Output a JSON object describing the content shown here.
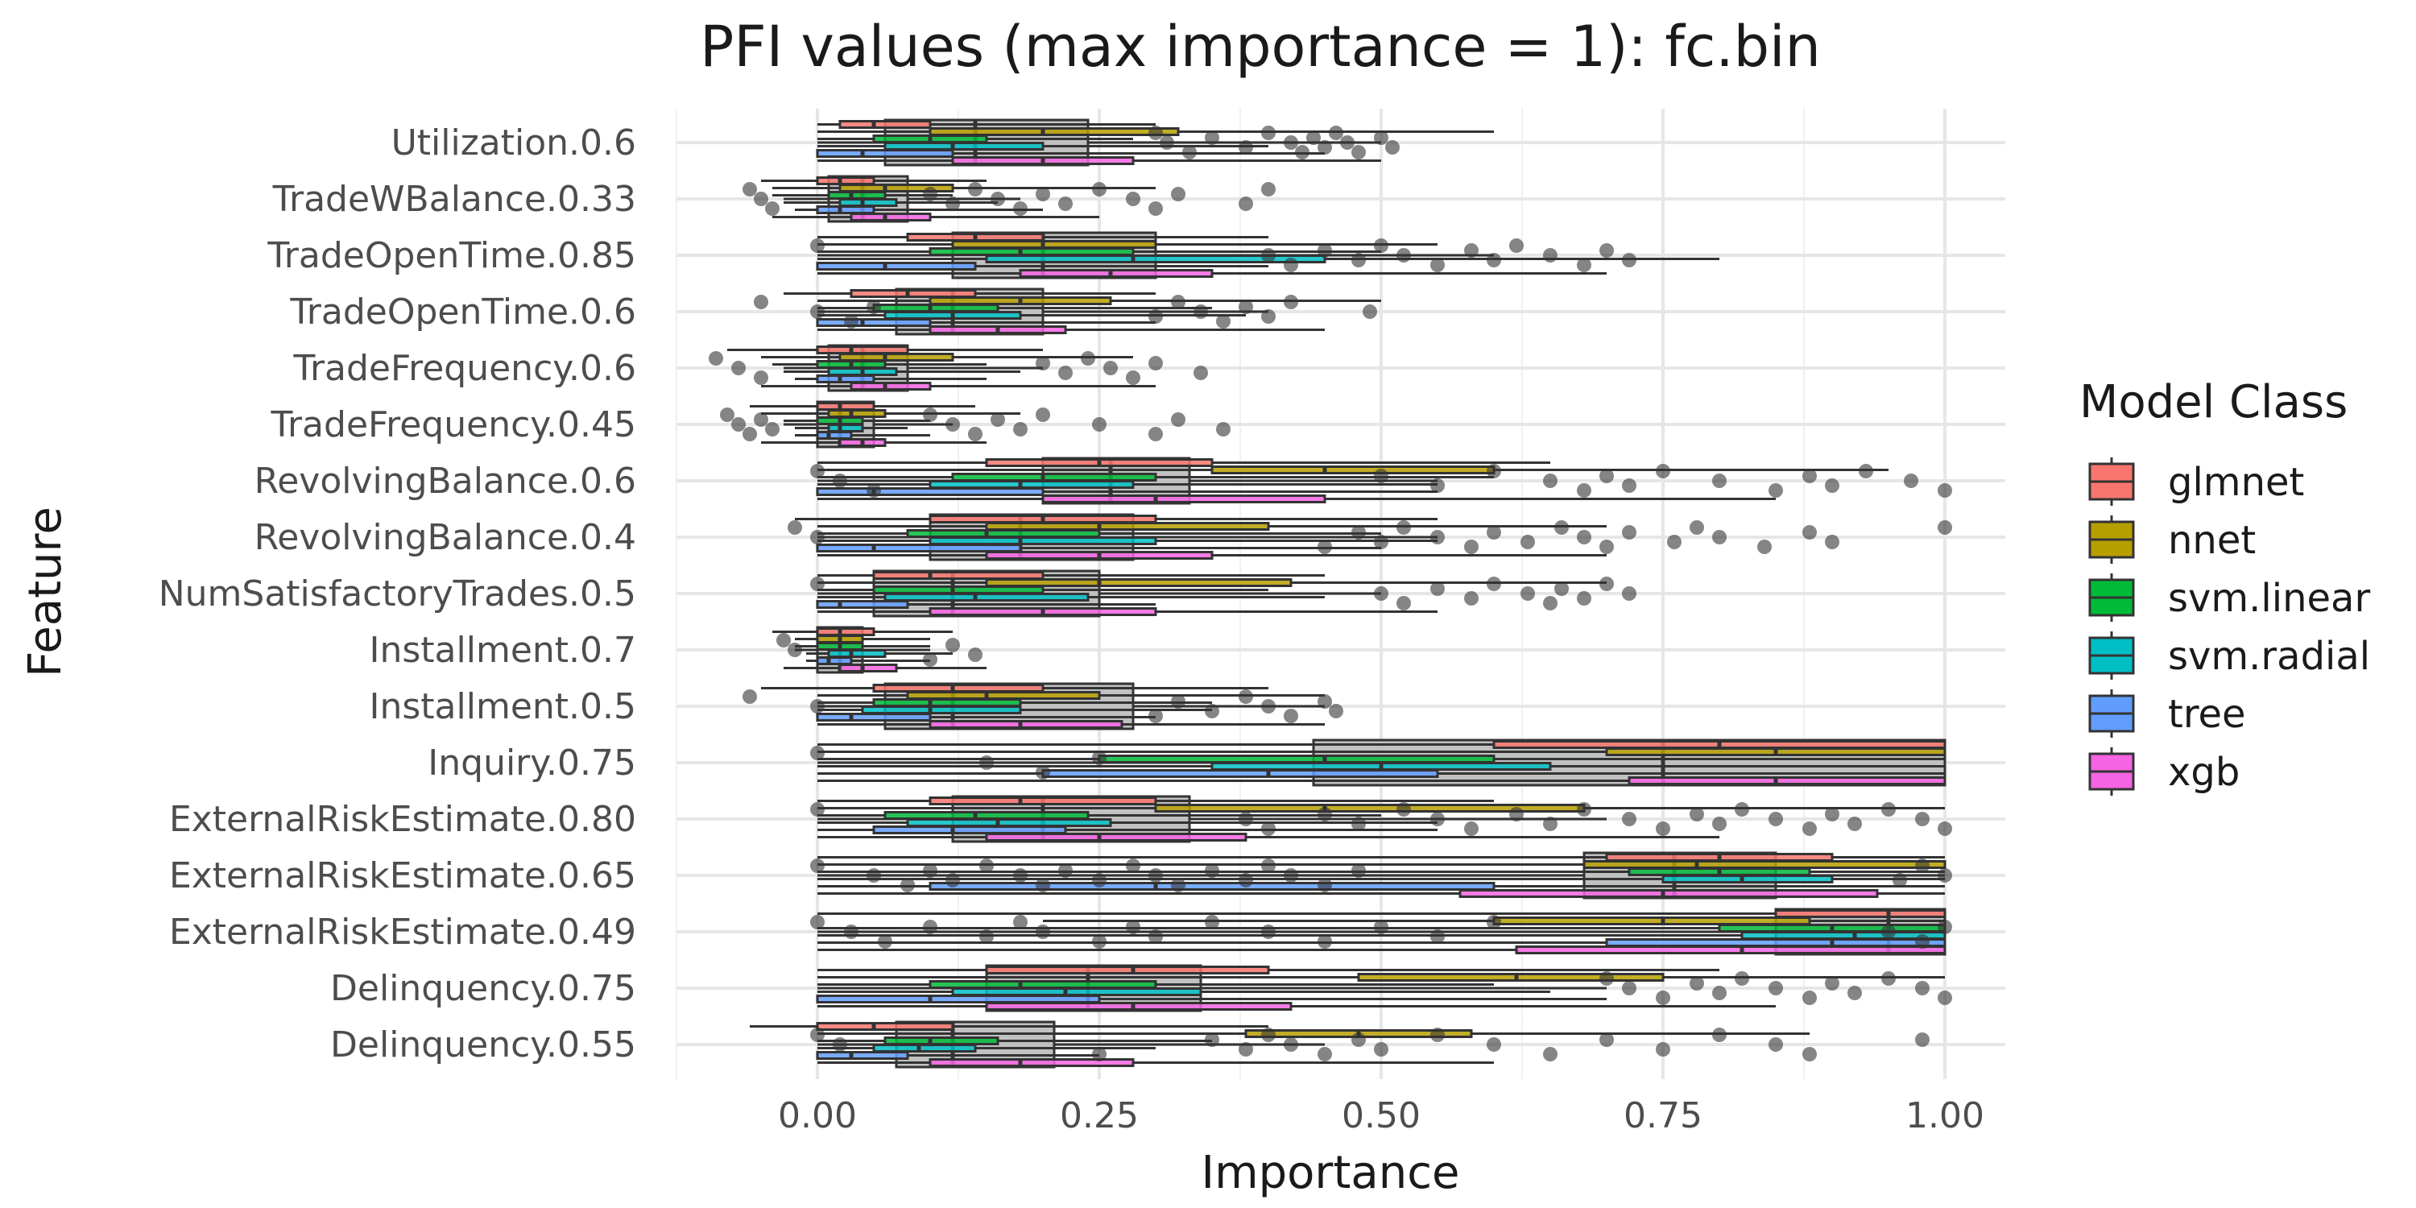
{
  "chart_data": {
    "type": "box",
    "title": "PFI values (max importance = 1): fc.bin",
    "xlabel": "Importance",
    "ylabel": "Feature",
    "xlim": [
      -0.12,
      1.06
    ],
    "x_ticks": [
      0,
      0.25,
      0.5,
      0.75,
      1
    ],
    "x_tick_labels": [
      "0.00",
      "0.25",
      "0.50",
      "0.75",
      "1.00"
    ],
    "grid": true,
    "legend": {
      "title": "Model Class",
      "position": "right",
      "entries": [
        {
          "name": "glmnet",
          "color": "#F8766D"
        },
        {
          "name": "nnet",
          "color": "#B79F00"
        },
        {
          "name": "svm.linear",
          "color": "#00BA38"
        },
        {
          "name": "svm.radial",
          "color": "#00BFC4"
        },
        {
          "name": "tree",
          "color": "#619CFF"
        },
        {
          "name": "xgb",
          "color": "#F564E3"
        }
      ]
    },
    "categories": [
      "Utilization.0.6",
      "TradeWBalance.0.33",
      "TradeOpenTime.0.85",
      "TradeOpenTime.0.6",
      "TradeFrequency.0.6",
      "TradeFrequency.0.45",
      "RevolvingBalance.0.6",
      "RevolvingBalance.0.4",
      "NumSatisfactoryTrades.0.5",
      "Installment.0.7",
      "Installment.0.5",
      "Inquiry.0.75",
      "ExternalRiskEstimate.0.80",
      "ExternalRiskEstimate.0.65",
      "ExternalRiskEstimate.0.49",
      "Delinquency.0.75",
      "Delinquency.0.55"
    ],
    "series": [
      {
        "name": "glmnet",
        "color": "#F8766D",
        "boxes": [
          [
            0.0,
            0.02,
            0.05,
            0.1,
            0.3
          ],
          [
            -0.05,
            0.0,
            0.02,
            0.05,
            0.15
          ],
          [
            0.0,
            0.08,
            0.14,
            0.2,
            0.4
          ],
          [
            -0.03,
            0.03,
            0.08,
            0.14,
            0.3
          ],
          [
            -0.08,
            0.0,
            0.03,
            0.08,
            0.2
          ],
          [
            -0.06,
            0.0,
            0.02,
            0.05,
            0.14
          ],
          [
            0.0,
            0.15,
            0.25,
            0.35,
            0.65
          ],
          [
            -0.02,
            0.1,
            0.2,
            0.3,
            0.55
          ],
          [
            0.0,
            0.05,
            0.1,
            0.2,
            0.45
          ],
          [
            -0.04,
            0.0,
            0.02,
            0.05,
            0.12
          ],
          [
            -0.05,
            0.05,
            0.12,
            0.2,
            0.4
          ],
          [
            0.0,
            0.6,
            0.8,
            1.0,
            1.0
          ],
          [
            0.0,
            0.1,
            0.18,
            0.3,
            0.6
          ],
          [
            0.0,
            0.7,
            0.8,
            0.9,
            1.0
          ],
          [
            0.0,
            0.85,
            0.95,
            1.0,
            1.0
          ],
          [
            0.0,
            0.15,
            0.28,
            0.4,
            0.8
          ],
          [
            -0.06,
            0.0,
            0.05,
            0.12,
            0.4
          ]
        ]
      },
      {
        "name": "nnet",
        "color": "#B79F00",
        "boxes": [
          [
            0.0,
            0.1,
            0.2,
            0.32,
            0.6
          ],
          [
            -0.04,
            0.02,
            0.06,
            0.12,
            0.3
          ],
          [
            0.0,
            0.12,
            0.2,
            0.3,
            0.55
          ],
          [
            0.0,
            0.1,
            0.18,
            0.26,
            0.5
          ],
          [
            -0.05,
            0.02,
            0.06,
            0.12,
            0.28
          ],
          [
            -0.05,
            0.01,
            0.03,
            0.06,
            0.18
          ],
          [
            0.0,
            0.35,
            0.45,
            0.6,
            0.95
          ],
          [
            0.0,
            0.15,
            0.25,
            0.4,
            0.7
          ],
          [
            0.0,
            0.15,
            0.25,
            0.42,
            0.7
          ],
          [
            -0.02,
            0.0,
            0.02,
            0.04,
            0.1
          ],
          [
            0.0,
            0.08,
            0.15,
            0.25,
            0.45
          ],
          [
            0.0,
            0.7,
            0.85,
            1.0,
            1.0
          ],
          [
            0.0,
            0.3,
            0.45,
            0.68,
            1.0
          ],
          [
            0.0,
            0.68,
            0.78,
            1.0,
            1.0
          ],
          [
            0.2,
            0.6,
            0.75,
            0.88,
            1.0
          ],
          [
            0.0,
            0.48,
            0.62,
            0.75,
            1.0
          ],
          [
            0.0,
            0.38,
            0.48,
            0.58,
            0.88
          ]
        ]
      },
      {
        "name": "svm.linear",
        "color": "#00BA38",
        "boxes": [
          [
            0.0,
            0.05,
            0.1,
            0.15,
            0.28
          ],
          [
            -0.04,
            0.01,
            0.03,
            0.06,
            0.12
          ],
          [
            0.0,
            0.1,
            0.18,
            0.28,
            0.5
          ],
          [
            0.0,
            0.05,
            0.1,
            0.16,
            0.35
          ],
          [
            -0.04,
            0.0,
            0.03,
            0.06,
            0.15
          ],
          [
            -0.03,
            0.0,
            0.02,
            0.04,
            0.1
          ],
          [
            0.0,
            0.12,
            0.2,
            0.3,
            0.6
          ],
          [
            0.0,
            0.08,
            0.15,
            0.25,
            0.5
          ],
          [
            0.0,
            0.05,
            0.12,
            0.2,
            0.4
          ],
          [
            -0.02,
            0.0,
            0.02,
            0.04,
            0.1
          ],
          [
            0.0,
            0.05,
            0.1,
            0.18,
            0.35
          ],
          [
            0.0,
            0.25,
            0.45,
            0.6,
            1.0
          ],
          [
            0.0,
            0.06,
            0.14,
            0.24,
            0.5
          ],
          [
            0.0,
            0.72,
            0.8,
            0.88,
            1.0
          ],
          [
            0.0,
            0.8,
            0.9,
            1.0,
            1.0
          ],
          [
            0.0,
            0.1,
            0.18,
            0.3,
            0.6
          ],
          [
            0.0,
            0.06,
            0.1,
            0.16,
            0.35
          ]
        ]
      },
      {
        "name": "svm.radial",
        "color": "#00BFC4",
        "boxes": [
          [
            0.0,
            0.06,
            0.12,
            0.2,
            0.4
          ],
          [
            -0.03,
            0.02,
            0.04,
            0.07,
            0.16
          ],
          [
            0.0,
            0.15,
            0.28,
            0.45,
            0.8
          ],
          [
            0.0,
            0.06,
            0.12,
            0.18,
            0.38
          ],
          [
            -0.03,
            0.01,
            0.04,
            0.07,
            0.18
          ],
          [
            -0.02,
            0.01,
            0.02,
            0.04,
            0.08
          ],
          [
            0.0,
            0.1,
            0.18,
            0.28,
            0.55
          ],
          [
            0.0,
            0.1,
            0.18,
            0.3,
            0.55
          ],
          [
            0.0,
            0.06,
            0.14,
            0.24,
            0.45
          ],
          [
            -0.01,
            0.01,
            0.03,
            0.06,
            0.12
          ],
          [
            0.0,
            0.04,
            0.1,
            0.18,
            0.35
          ],
          [
            0.0,
            0.35,
            0.5,
            0.65,
            1.0
          ],
          [
            0.0,
            0.08,
            0.16,
            0.26,
            0.55
          ],
          [
            0.0,
            0.75,
            0.82,
            0.9,
            1.0
          ],
          [
            0.0,
            0.82,
            0.92,
            1.0,
            1.0
          ],
          [
            0.0,
            0.12,
            0.22,
            0.34,
            0.65
          ],
          [
            0.0,
            0.05,
            0.09,
            0.14,
            0.3
          ]
        ]
      },
      {
        "name": "tree",
        "color": "#619CFF",
        "boxes": [
          [
            0.0,
            0.0,
            0.04,
            0.12,
            0.45
          ],
          [
            -0.02,
            0.0,
            0.02,
            0.05,
            0.2
          ],
          [
            0.0,
            0.0,
            0.06,
            0.14,
            0.4
          ],
          [
            0.0,
            0.0,
            0.04,
            0.1,
            0.3
          ],
          [
            -0.02,
            0.0,
            0.02,
            0.05,
            0.15
          ],
          [
            -0.02,
            0.0,
            0.01,
            0.03,
            0.1
          ],
          [
            0.0,
            0.0,
            0.05,
            0.2,
            0.55
          ],
          [
            0.0,
            0.0,
            0.05,
            0.18,
            0.5
          ],
          [
            0.0,
            0.0,
            0.02,
            0.08,
            0.3
          ],
          [
            -0.01,
            0.0,
            0.01,
            0.03,
            0.1
          ],
          [
            0.0,
            0.0,
            0.03,
            0.1,
            0.3
          ],
          [
            0.0,
            0.2,
            0.4,
            0.55,
            1.0
          ],
          [
            0.0,
            0.05,
            0.12,
            0.22,
            0.55
          ],
          [
            0.0,
            0.1,
            0.3,
            0.6,
            1.0
          ],
          [
            0.0,
            0.7,
            0.9,
            1.0,
            1.0
          ],
          [
            0.0,
            0.0,
            0.1,
            0.25,
            0.7
          ],
          [
            0.0,
            0.0,
            0.03,
            0.08,
            0.25
          ]
        ]
      },
      {
        "name": "xgb",
        "color": "#F564E3",
        "boxes": [
          [
            0.0,
            0.12,
            0.2,
            0.28,
            0.5
          ],
          [
            -0.04,
            0.03,
            0.06,
            0.1,
            0.25
          ],
          [
            0.0,
            0.18,
            0.26,
            0.35,
            0.7
          ],
          [
            0.0,
            0.1,
            0.16,
            0.22,
            0.45
          ],
          [
            -0.05,
            0.03,
            0.06,
            0.1,
            0.3
          ],
          [
            -0.05,
            0.02,
            0.04,
            0.06,
            0.15
          ],
          [
            0.0,
            0.2,
            0.3,
            0.45,
            0.85
          ],
          [
            0.0,
            0.15,
            0.25,
            0.35,
            0.7
          ],
          [
            0.0,
            0.1,
            0.2,
            0.3,
            0.55
          ],
          [
            -0.03,
            0.02,
            0.04,
            0.07,
            0.15
          ],
          [
            0.0,
            0.1,
            0.18,
            0.27,
            0.45
          ],
          [
            0.0,
            0.72,
            0.85,
            1.0,
            1.0
          ],
          [
            0.0,
            0.15,
            0.25,
            0.38,
            0.8
          ],
          [
            0.0,
            0.57,
            0.75,
            0.94,
            1.0
          ],
          [
            0.0,
            0.62,
            0.82,
            1.0,
            1.0
          ],
          [
            0.0,
            0.15,
            0.28,
            0.42,
            0.85
          ],
          [
            0.0,
            0.1,
            0.18,
            0.28,
            0.6
          ]
        ]
      }
    ],
    "pooled_boxes": [
      [
        0.0,
        0.06,
        0.14,
        0.24,
        0.5
      ],
      [
        -0.03,
        0.01,
        0.04,
        0.08,
        0.18
      ],
      [
        0.0,
        0.12,
        0.2,
        0.3,
        0.6
      ],
      [
        0.0,
        0.07,
        0.12,
        0.2,
        0.4
      ],
      [
        -0.03,
        0.01,
        0.04,
        0.08,
        0.2
      ],
      [
        -0.03,
        0.0,
        0.02,
        0.05,
        0.12
      ],
      [
        0.0,
        0.2,
        0.26,
        0.33,
        0.55
      ],
      [
        0.0,
        0.1,
        0.18,
        0.28,
        0.55
      ],
      [
        0.0,
        0.05,
        0.12,
        0.25,
        0.5
      ],
      [
        -0.02,
        0.0,
        0.02,
        0.04,
        0.1
      ],
      [
        0.0,
        0.06,
        0.12,
        0.28,
        0.45
      ],
      [
        0.0,
        0.44,
        0.75,
        1.0,
        1.0
      ],
      [
        0.0,
        0.12,
        0.2,
        0.33,
        0.7
      ],
      [
        0.0,
        0.68,
        0.76,
        0.85,
        1.0
      ],
      [
        0.0,
        0.85,
        0.95,
        1.0,
        1.0
      ],
      [
        0.0,
        0.15,
        0.24,
        0.34,
        0.7
      ],
      [
        0.0,
        0.07,
        0.12,
        0.21,
        0.45
      ]
    ],
    "outliers": [
      [
        0.3,
        0.31,
        0.33,
        0.35,
        0.38,
        0.4,
        0.42,
        0.43,
        0.44,
        0.45,
        0.46,
        0.47,
        0.48,
        0.5,
        0.51
      ],
      [
        -0.06,
        -0.05,
        -0.04,
        0.1,
        0.12,
        0.14,
        0.16,
        0.18,
        0.2,
        0.22,
        0.25,
        0.28,
        0.3,
        0.32,
        0.38,
        0.4
      ],
      [
        0.0,
        0.4,
        0.42,
        0.45,
        0.48,
        0.5,
        0.52,
        0.55,
        0.58,
        0.6,
        0.62,
        0.65,
        0.68,
        0.7,
        0.72
      ],
      [
        -0.05,
        0.0,
        0.03,
        0.05,
        0.3,
        0.32,
        0.34,
        0.36,
        0.38,
        0.4,
        0.42,
        0.49
      ],
      [
        -0.09,
        -0.07,
        -0.05,
        0.2,
        0.22,
        0.24,
        0.26,
        0.28,
        0.3,
        0.34
      ],
      [
        -0.08,
        -0.07,
        -0.06,
        -0.05,
        -0.04,
        0.1,
        0.12,
        0.14,
        0.16,
        0.18,
        0.2,
        0.25,
        0.3,
        0.32,
        0.36
      ],
      [
        0.0,
        0.02,
        0.05,
        0.5,
        0.55,
        0.6,
        0.65,
        0.68,
        0.7,
        0.72,
        0.75,
        0.8,
        0.85,
        0.88,
        0.9,
        0.93,
        0.97,
        1.0
      ],
      [
        -0.02,
        0.0,
        0.45,
        0.48,
        0.5,
        0.52,
        0.55,
        0.58,
        0.6,
        0.63,
        0.66,
        0.68,
        0.7,
        0.72,
        0.76,
        0.78,
        0.8,
        0.84,
        0.88,
        0.9,
        1.0
      ],
      [
        0.0,
        0.5,
        0.52,
        0.55,
        0.58,
        0.6,
        0.63,
        0.65,
        0.66,
        0.68,
        0.7,
        0.72
      ],
      [
        -0.03,
        -0.02,
        0.1,
        0.12,
        0.14
      ],
      [
        -0.06,
        0.0,
        0.3,
        0.32,
        0.35,
        0.38,
        0.4,
        0.42,
        0.45,
        0.46
      ],
      [
        0.0,
        0.15,
        0.2,
        0.25
      ],
      [
        0.0,
        0.38,
        0.4,
        0.45,
        0.48,
        0.52,
        0.55,
        0.58,
        0.62,
        0.65,
        0.68,
        0.72,
        0.75,
        0.78,
        0.8,
        0.82,
        0.85,
        0.88,
        0.9,
        0.92,
        0.95,
        0.98,
        1.0
      ],
      [
        0.0,
        0.05,
        0.08,
        0.1,
        0.12,
        0.15,
        0.18,
        0.2,
        0.22,
        0.25,
        0.28,
        0.3,
        0.32,
        0.35,
        0.38,
        0.4,
        0.42,
        0.45,
        0.48,
        0.96,
        0.98,
        1.0
      ],
      [
        0.0,
        0.03,
        0.06,
        0.1,
        0.15,
        0.18,
        0.2,
        0.25,
        0.28,
        0.3,
        0.35,
        0.4,
        0.45,
        0.5,
        0.55,
        0.6,
        0.95,
        0.98,
        1.0
      ],
      [
        0.7,
        0.72,
        0.75,
        0.78,
        0.8,
        0.82,
        0.85,
        0.88,
        0.9,
        0.92,
        0.95,
        0.98,
        1.0
      ],
      [
        0.0,
        0.02,
        0.25,
        0.35,
        0.38,
        0.4,
        0.42,
        0.45,
        0.48,
        0.5,
        0.55,
        0.6,
        0.65,
        0.7,
        0.75,
        0.8,
        0.85,
        0.88,
        0.98
      ]
    ]
  }
}
